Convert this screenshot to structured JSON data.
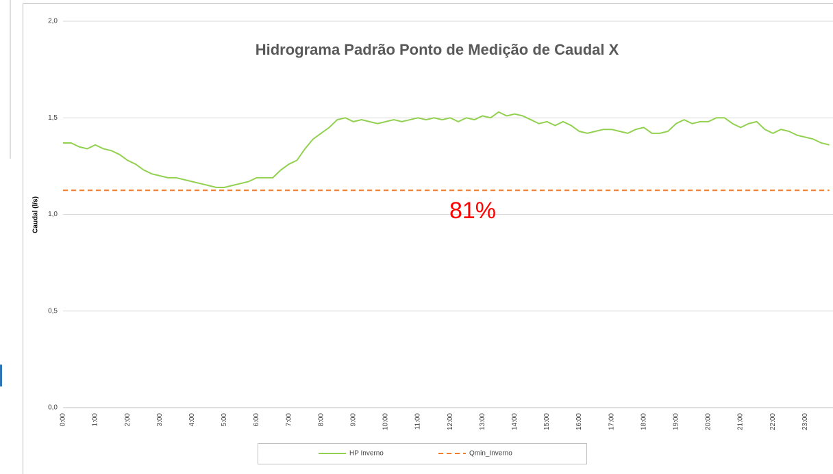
{
  "chart_data": {
    "type": "line",
    "title": "Hidrograma Padrão Ponto de Medição de Caudal X",
    "y_label": "Caudal (l/s)",
    "annotation": "81%",
    "categories": [
      "0:00",
      null,
      null,
      null,
      "1:00",
      null,
      null,
      null,
      "2:00",
      null,
      null,
      null,
      "3:00",
      null,
      null,
      null,
      "4:00",
      null,
      null,
      null,
      "5:00",
      null,
      null,
      null,
      "6:00",
      null,
      null,
      null,
      "7:00",
      null,
      null,
      null,
      "8:00",
      null,
      null,
      null,
      "9:00",
      null,
      null,
      null,
      "10:00",
      null,
      null,
      null,
      "11:00",
      null,
      null,
      null,
      "12:00",
      null,
      null,
      null,
      "13:00",
      null,
      null,
      null,
      "14:00",
      null,
      null,
      null,
      "15:00",
      null,
      null,
      null,
      "16:00",
      null,
      null,
      null,
      "17:00",
      null,
      null,
      null,
      "18:00",
      null,
      null,
      null,
      "19:00",
      null,
      null,
      null,
      "20:00",
      null,
      null,
      null,
      "21:00",
      null,
      null,
      null,
      "22:00",
      null,
      null,
      null,
      "23:00",
      null,
      null,
      null
    ],
    "series": [
      {
        "name": "HP Inverno",
        "color": "#92d050",
        "dash": false,
        "values": [
          1.37,
          1.37,
          1.35,
          1.34,
          1.36,
          1.34,
          1.33,
          1.31,
          1.28,
          1.26,
          1.23,
          1.21,
          1.2,
          1.19,
          1.19,
          1.18,
          1.17,
          1.16,
          1.15,
          1.14,
          1.14,
          1.15,
          1.16,
          1.17,
          1.19,
          1.19,
          1.19,
          1.23,
          1.26,
          1.28,
          1.34,
          1.39,
          1.42,
          1.45,
          1.49,
          1.5,
          1.48,
          1.49,
          1.48,
          1.47,
          1.48,
          1.49,
          1.48,
          1.49,
          1.5,
          1.49,
          1.5,
          1.49,
          1.5,
          1.48,
          1.5,
          1.49,
          1.51,
          1.5,
          1.53,
          1.51,
          1.52,
          1.51,
          1.49,
          1.47,
          1.48,
          1.46,
          1.48,
          1.46,
          1.43,
          1.42,
          1.43,
          1.44,
          1.44,
          1.43,
          1.42,
          1.44,
          1.45,
          1.42,
          1.42,
          1.43,
          1.47,
          1.49,
          1.47,
          1.48,
          1.48,
          1.5,
          1.5,
          1.47,
          1.45,
          1.47,
          1.48,
          1.44,
          1.42,
          1.44,
          1.43,
          1.41,
          1.4,
          1.39,
          1.37,
          1.36
        ]
      },
      {
        "name": "Qmin_Inverno",
        "color": "#ed7d31",
        "dash": true,
        "values": [
          1.125,
          1.125,
          1.125,
          1.125,
          1.125,
          1.125,
          1.125,
          1.125,
          1.125,
          1.125,
          1.125,
          1.125,
          1.125,
          1.125,
          1.125,
          1.125,
          1.125,
          1.125,
          1.125,
          1.125,
          1.125,
          1.125,
          1.125,
          1.125,
          1.125,
          1.125,
          1.125,
          1.125,
          1.125,
          1.125,
          1.125,
          1.125,
          1.125,
          1.125,
          1.125,
          1.125,
          1.125,
          1.125,
          1.125,
          1.125,
          1.125,
          1.125,
          1.125,
          1.125,
          1.125,
          1.125,
          1.125,
          1.125,
          1.125,
          1.125,
          1.125,
          1.125,
          1.125,
          1.125,
          1.125,
          1.125,
          1.125,
          1.125,
          1.125,
          1.125,
          1.125,
          1.125,
          1.125,
          1.125,
          1.125,
          1.125,
          1.125,
          1.125,
          1.125,
          1.125,
          1.125,
          1.125,
          1.125,
          1.125,
          1.125,
          1.125,
          1.125,
          1.125,
          1.125,
          1.125,
          1.125,
          1.125,
          1.125,
          1.125,
          1.125,
          1.125,
          1.125,
          1.125,
          1.125,
          1.125,
          1.125,
          1.125,
          1.125,
          1.125,
          1.125,
          1.125
        ]
      }
    ],
    "ylim": [
      0,
      2
    ],
    "yticks": [
      {
        "value": 0,
        "label": "0,0"
      },
      {
        "value": 0.5,
        "label": "0,5"
      },
      {
        "value": 1,
        "label": "1,0"
      },
      {
        "value": 1.5,
        "label": "1,5"
      },
      {
        "value": 2,
        "label": "2,0"
      }
    ],
    "grid": true
  }
}
